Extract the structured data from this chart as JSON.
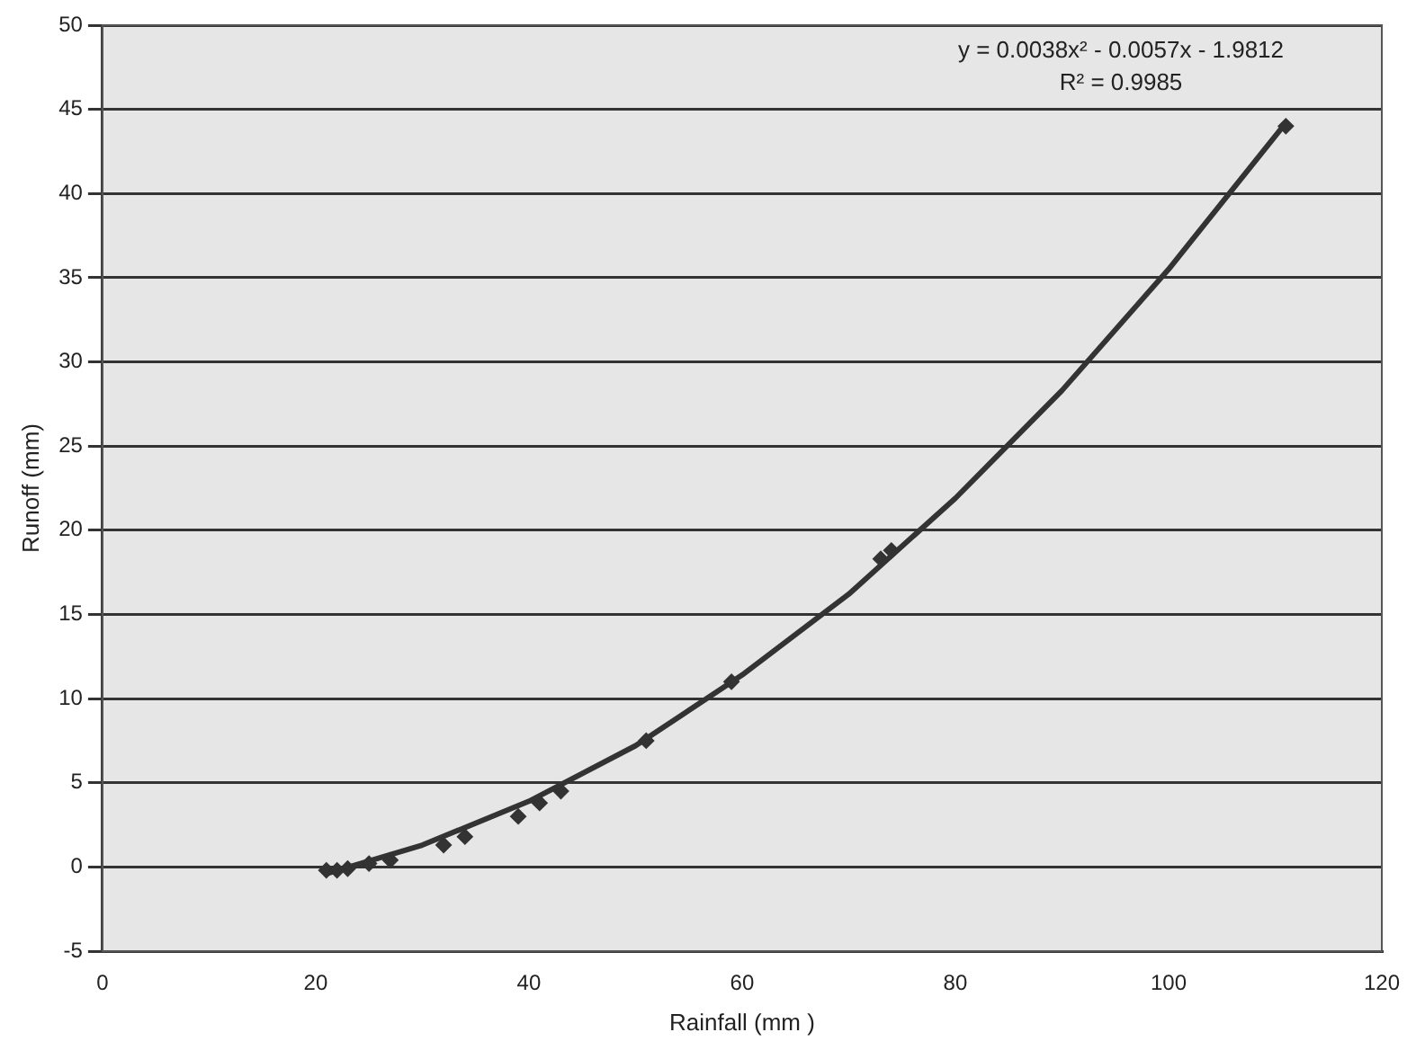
{
  "chart_data": {
    "type": "scatter",
    "xlabel": "Rainfall (mm )",
    "ylabel": "Runoff (mm)",
    "xlim": [
      0,
      120
    ],
    "xticks": [
      0,
      20,
      40,
      60,
      80,
      100,
      120
    ],
    "ylim": [
      -5,
      50
    ],
    "yticks": [
      -5,
      0,
      5,
      10,
      15,
      20,
      25,
      30,
      35,
      40,
      45,
      50
    ],
    "grid": "y",
    "legend": false,
    "marker": "diamond",
    "series": [
      {
        "type": "scatter",
        "color": "#333333",
        "x": [
          21,
          22,
          23,
          25,
          27,
          32,
          34,
          39,
          41,
          43,
          51,
          59,
          73,
          74,
          111
        ],
        "values": [
          -0.2,
          -0.2,
          -0.1,
          0.2,
          0.4,
          1.3,
          1.8,
          3,
          3.8,
          4.5,
          7.5,
          11,
          18.3,
          18.8,
          44
        ]
      },
      {
        "type": "line",
        "color": "#333333",
        "marker": "none",
        "x": [
          21,
          30,
          40,
          50,
          60,
          70,
          80,
          90,
          100,
          111
        ],
        "values": [
          -0.4,
          1.3,
          3.9,
          7.2,
          11.4,
          16.2,
          21.9,
          28.3,
          35.5,
          44.2
        ]
      }
    ],
    "annotations": [
      "y = 0.0038x² - 0.0057x - 1.9812",
      "R² = 0.9985"
    ]
  }
}
